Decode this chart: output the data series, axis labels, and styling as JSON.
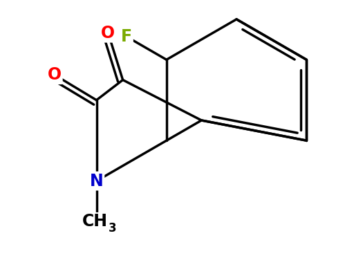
{
  "background_color": "#ffffff",
  "bond_color": "#000000",
  "atom_colors": {
    "O": "#ff0000",
    "N": "#0000cc",
    "F": "#7aaa00",
    "C": "#000000"
  },
  "bond_width": 2.5,
  "font_size_atoms": 17,
  "font_size_subscript": 12
}
